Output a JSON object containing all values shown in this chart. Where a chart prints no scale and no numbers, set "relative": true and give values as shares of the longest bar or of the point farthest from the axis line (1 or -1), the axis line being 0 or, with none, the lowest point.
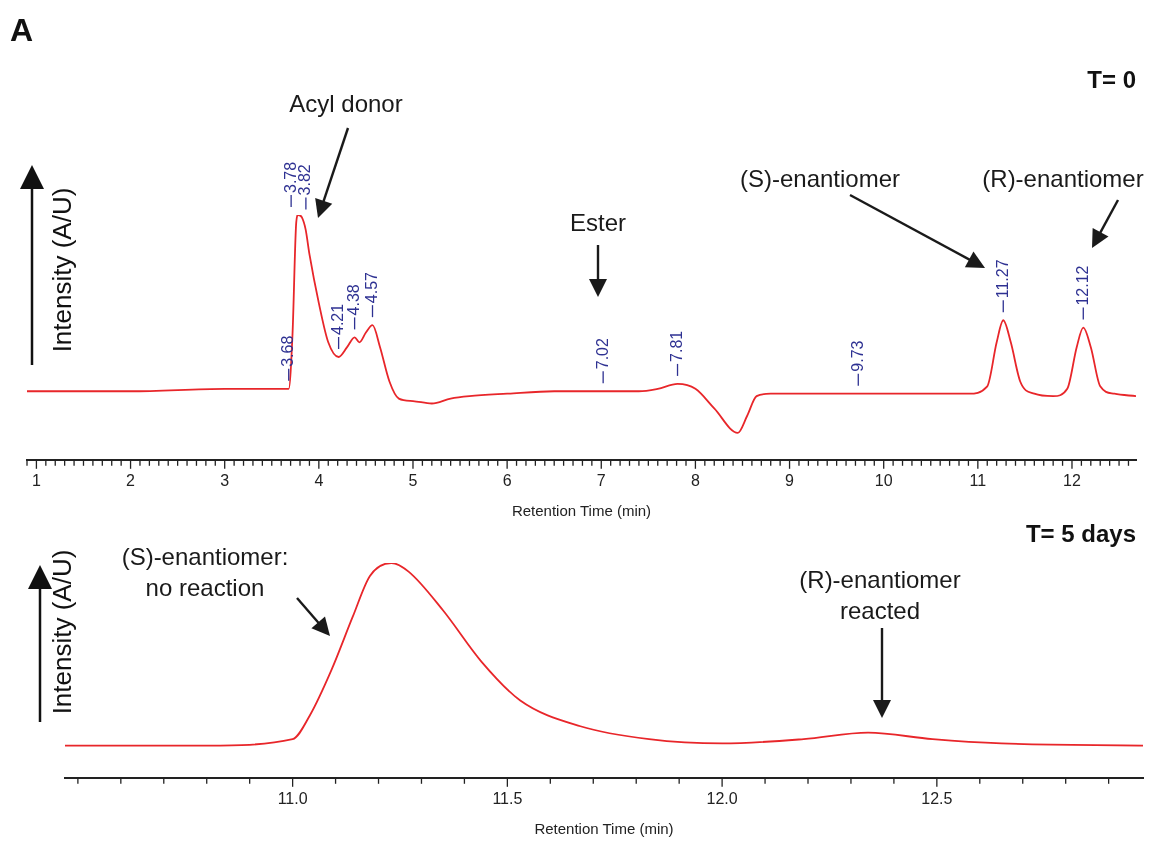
{
  "chart_data": [
    {
      "type": "line",
      "title": "T= 0",
      "xlabel": "Retention Time (min)",
      "ylabel": "Intensity (A/U)",
      "relative": true,
      "x": [
        0.9,
        2.0,
        3.0,
        3.68,
        3.72,
        3.76,
        3.78,
        3.82,
        3.86,
        3.9,
        4.0,
        4.1,
        4.21,
        4.3,
        4.38,
        4.43,
        4.5,
        4.57,
        4.65,
        4.75,
        4.85,
        5.0,
        5.2,
        5.4,
        5.6,
        6.0,
        6.5,
        7.02,
        7.4,
        7.6,
        7.81,
        8.0,
        8.2,
        8.45,
        8.55,
        8.65,
        8.8,
        9.0,
        9.73,
        10.5,
        10.9,
        11.1,
        11.2,
        11.27,
        11.35,
        11.45,
        11.6,
        11.8,
        11.95,
        12.05,
        12.12,
        12.2,
        12.3,
        12.45,
        12.68
      ],
      "series": [
        {
          "color": "#e8262a",
          "values": [
            0.28,
            0.28,
            0.29,
            0.29,
            0.51,
            0.97,
            1.0,
            0.99,
            0.94,
            0.84,
            0.64,
            0.48,
            0.42,
            0.46,
            0.5,
            0.48,
            0.52,
            0.55,
            0.46,
            0.32,
            0.25,
            0.24,
            0.23,
            0.25,
            0.26,
            0.27,
            0.28,
            0.28,
            0.28,
            0.29,
            0.31,
            0.29,
            0.21,
            0.11,
            0.18,
            0.26,
            0.27,
            0.27,
            0.27,
            0.27,
            0.27,
            0.3,
            0.48,
            0.57,
            0.48,
            0.32,
            0.27,
            0.26,
            0.29,
            0.46,
            0.54,
            0.46,
            0.3,
            0.27,
            0.26
          ]
        }
      ],
      "xlim": [
        0.9,
        12.68
      ],
      "xticks": [
        {
          "value": 0.9,
          "label": null
        },
        1,
        {
          "value": 1.1,
          "label": null
        },
        {
          "value": 1.2,
          "label": null
        },
        {
          "value": 1.3,
          "label": null
        },
        {
          "value": 1.4,
          "label": null
        },
        {
          "value": 1.5,
          "label": null
        },
        {
          "value": 1.6,
          "label": null
        },
        {
          "value": 1.7,
          "label": null
        },
        {
          "value": 1.8,
          "label": null
        },
        {
          "value": 1.9,
          "label": null
        },
        2,
        {
          "value": 2.1,
          "label": null
        },
        {
          "value": 2.2,
          "label": null
        },
        {
          "value": 2.3,
          "label": null
        },
        {
          "value": 2.4,
          "label": null
        },
        {
          "value": 2.5,
          "label": null
        },
        {
          "value": 2.6,
          "label": null
        },
        {
          "value": 2.7,
          "label": null
        },
        {
          "value": 2.8,
          "label": null
        },
        {
          "value": 2.9,
          "label": null
        },
        3,
        {
          "value": 3.1,
          "label": null
        },
        {
          "value": 3.2,
          "label": null
        },
        {
          "value": 3.3,
          "label": null
        },
        {
          "value": 3.4,
          "label": null
        },
        {
          "value": 3.5,
          "label": null
        },
        {
          "value": 3.6,
          "label": null
        },
        {
          "value": 3.7,
          "label": null
        },
        {
          "value": 3.8,
          "label": null
        },
        {
          "value": 3.9,
          "label": null
        },
        4,
        {
          "value": 4.1,
          "label": null
        },
        {
          "value": 4.2,
          "label": null
        },
        {
          "value": 4.3,
          "label": null
        },
        {
          "value": 4.4,
          "label": null
        },
        {
          "value": 4.5,
          "label": null
        },
        {
          "value": 4.6,
          "label": null
        },
        {
          "value": 4.7,
          "label": null
        },
        {
          "value": 4.8,
          "label": null
        },
        {
          "value": 4.9,
          "label": null
        },
        5,
        {
          "value": 5.1,
          "label": null
        },
        {
          "value": 5.2,
          "label": null
        },
        {
          "value": 5.3,
          "label": null
        },
        {
          "value": 5.4,
          "label": null
        },
        {
          "value": 5.5,
          "label": null
        },
        {
          "value": 5.6,
          "label": null
        },
        {
          "value": 5.7,
          "label": null
        },
        {
          "value": 5.8,
          "label": null
        },
        {
          "value": 5.9,
          "label": null
        },
        6,
        {
          "value": 6.1,
          "label": null
        },
        {
          "value": 6.2,
          "label": null
        },
        {
          "value": 6.3,
          "label": null
        },
        {
          "value": 6.4,
          "label": null
        },
        {
          "value": 6.5,
          "label": null
        },
        {
          "value": 6.6,
          "label": null
        },
        {
          "value": 6.7,
          "label": null
        },
        {
          "value": 6.8,
          "label": null
        },
        {
          "value": 6.9,
          "label": null
        },
        7,
        {
          "value": 7.1,
          "label": null
        },
        {
          "value": 7.2,
          "label": null
        },
        {
          "value": 7.3,
          "label": null
        },
        {
          "value": 7.4,
          "label": null
        },
        {
          "value": 7.5,
          "label": null
        },
        {
          "value": 7.6,
          "label": null
        },
        {
          "value": 7.7,
          "label": null
        },
        {
          "value": 7.8,
          "label": null
        },
        {
          "value": 7.9,
          "label": null
        },
        8,
        {
          "value": 8.1,
          "label": null
        },
        {
          "value": 8.2,
          "label": null
        },
        {
          "value": 8.3,
          "label": null
        },
        {
          "value": 8.4,
          "label": null
        },
        {
          "value": 8.5,
          "label": null
        },
        {
          "value": 8.6,
          "label": null
        },
        {
          "value": 8.7,
          "label": null
        },
        {
          "value": 8.8,
          "label": null
        },
        {
          "value": 8.9,
          "label": null
        },
        9,
        {
          "value": 9.1,
          "label": null
        },
        {
          "value": 9.2,
          "label": null
        },
        {
          "value": 9.3,
          "label": null
        },
        {
          "value": 9.4,
          "label": null
        },
        {
          "value": 9.5,
          "label": null
        },
        {
          "value": 9.6,
          "label": null
        },
        {
          "value": 9.7,
          "label": null
        },
        {
          "value": 9.8,
          "label": null
        },
        {
          "value": 9.9,
          "label": null
        },
        10,
        {
          "value": 10.1,
          "label": null
        },
        {
          "value": 10.2,
          "label": null
        },
        {
          "value": 10.3,
          "label": null
        },
        {
          "value": 10.4,
          "label": null
        },
        {
          "value": 10.5,
          "label": null
        },
        {
          "value": 10.6,
          "label": null
        },
        {
          "value": 10.7,
          "label": null
        },
        {
          "value": 10.8,
          "label": null
        },
        {
          "value": 10.9,
          "label": null
        },
        11,
        {
          "value": 11.1,
          "label": null
        },
        {
          "value": 11.2,
          "label": null
        },
        {
          "value": 11.3,
          "label": null
        },
        {
          "value": 11.4,
          "label": null
        },
        {
          "value": 11.5,
          "label": null
        },
        {
          "value": 11.6,
          "label": null
        },
        {
          "value": 11.7,
          "label": null
        },
        {
          "value": 11.8,
          "label": null
        },
        {
          "value": 11.9,
          "label": null
        },
        12,
        {
          "value": 12.1,
          "label": null
        },
        {
          "value": 12.2,
          "label": null
        },
        {
          "value": 12.3,
          "label": null
        },
        {
          "value": 12.4,
          "label": null
        },
        {
          "value": 12.5,
          "label": null
        },
        {
          "value": 12.6,
          "label": null
        }
      ],
      "annotations": [
        "A",
        {
          "text": "3.68",
          "x": 3.68,
          "y": 0.29
        },
        {
          "text": "3.78",
          "x": 3.78,
          "y": 1.0
        },
        {
          "text": "3.82",
          "x": 3.82,
          "y": 0.99
        },
        {
          "text": "4.21",
          "x": 4.21,
          "y": 0.42
        },
        {
          "text": "4.38",
          "x": 4.38,
          "y": 0.5
        },
        {
          "text": "4.57",
          "x": 4.57,
          "y": 0.55
        },
        {
          "text": "7.02",
          "x": 7.02,
          "y": 0.28
        },
        {
          "text": "7.81",
          "x": 7.81,
          "y": 0.31
        },
        {
          "text": "9.73",
          "x": 9.73,
          "y": 0.27
        },
        {
          "text": "11.27",
          "x": 11.27,
          "y": 0.57
        },
        {
          "text": "12.12",
          "x": 12.12,
          "y": 0.54
        },
        "Acyl donor",
        "Ester",
        "(S)-enantiomer",
        "(R)-enantiomer"
      ]
    },
    {
      "type": "line",
      "title": "T= 5 days",
      "xlabel": "Retention Time (min)",
      "ylabel": "Intensity (A/U)",
      "relative": true,
      "x": [
        10.47,
        10.8,
        11.0,
        11.04,
        11.09,
        11.14,
        11.18,
        11.23,
        11.27,
        11.35,
        11.44,
        11.53,
        11.67,
        11.83,
        12.0,
        12.19,
        12.34,
        12.49,
        12.65,
        12.98
      ],
      "series": [
        {
          "color": "#e8262a",
          "values": [
            0.15,
            0.15,
            0.18,
            0.29,
            0.5,
            0.75,
            0.94,
            1,
            0.96,
            0.78,
            0.54,
            0.36,
            0.24,
            0.18,
            0.16,
            0.18,
            0.21,
            0.18,
            0.16,
            0.15
          ]
        }
      ],
      "xlim": [
        10.47,
        12.98
      ],
      "xticks": [
        {
          "value": 10.5,
          "label": null
        },
        {
          "value": 10.6,
          "label": null
        },
        {
          "value": 10.7,
          "label": null
        },
        {
          "value": 10.8,
          "label": null
        },
        {
          "value": 10.9,
          "label": null
        },
        {
          "value": 11,
          "label": "11.0"
        },
        {
          "value": 11.1,
          "label": null
        },
        {
          "value": 11.2,
          "label": null
        },
        {
          "value": 11.3,
          "label": null
        },
        {
          "value": 11.4,
          "label": null
        },
        11.5,
        {
          "value": 11.6,
          "label": null
        },
        {
          "value": 11.7,
          "label": null
        },
        {
          "value": 11.8,
          "label": null
        },
        {
          "value": 11.9,
          "label": null
        },
        {
          "value": 12,
          "label": "12.0"
        },
        {
          "value": 12.1,
          "label": null
        },
        {
          "value": 12.2,
          "label": null
        },
        {
          "value": 12.3,
          "label": null
        },
        {
          "value": 12.4,
          "label": null
        },
        12.5,
        {
          "value": 12.6,
          "label": null
        },
        {
          "value": 12.7,
          "label": null
        },
        {
          "value": 12.8,
          "label": null
        },
        {
          "value": 12.9,
          "label": null
        }
      ],
      "annotations": [
        "(S)-enantiomer:\nno reaction",
        "(R)-enantiomer\nreacted"
      ]
    }
  ]
}
